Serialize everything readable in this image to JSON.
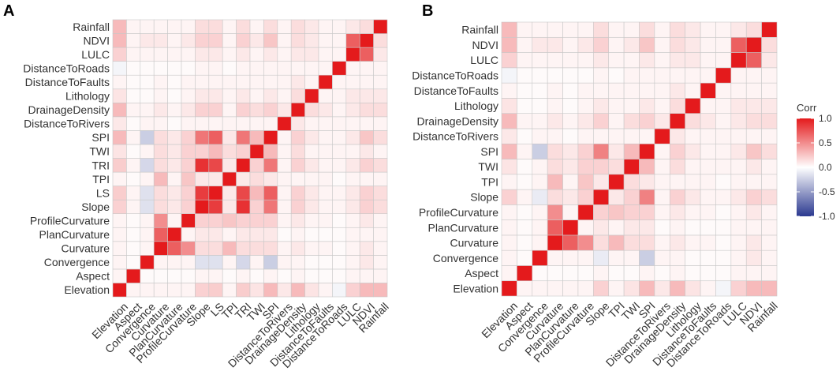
{
  "colors": {
    "negative": "#2b3990",
    "neutral": "#ffffff",
    "positive": "#e41a1c",
    "cell_border": "#c8c8c8"
  },
  "chart_data": [
    {
      "type": "heatmap",
      "panel_label": "A",
      "variables": [
        "Elevation",
        "Aspect",
        "Convergence",
        "Curvature",
        "PlanCurvature",
        "ProfileCurvature",
        "Slope",
        "LS",
        "TPI",
        "TRI",
        "TWI",
        "SPI",
        "DistanceToRivers",
        "DrainageDensity",
        "Lithology",
        "DistanceToFaults",
        "DistanceToRoads",
        "LULC",
        "NDVI",
        "Rainfall"
      ],
      "row_order_top_to_bottom": [
        "Rainfall",
        "NDVI",
        "LULC",
        "DistanceToRoads",
        "DistanceToFaults",
        "Lithology",
        "DrainageDensity",
        "DistanceToRivers",
        "SPI",
        "TWI",
        "TRI",
        "TPI",
        "LS",
        "Slope",
        "ProfileCurvature",
        "PlanCurvature",
        "Curvature",
        "Convergence",
        "Aspect",
        "Elevation"
      ],
      "matrix": [
        [
          1.0,
          0.05,
          0.05,
          0.05,
          0.05,
          0.05,
          0.2,
          0.22,
          0.05,
          0.22,
          0.12,
          0.3,
          0.1,
          0.3,
          0.12,
          0.05,
          -0.05,
          0.2,
          0.3,
          0.3
        ],
        [
          0.05,
          1.0,
          0.02,
          0.02,
          0.02,
          0.02,
          0.05,
          0.05,
          0.02,
          0.05,
          0.02,
          0.05,
          0.02,
          0.05,
          0.02,
          0.02,
          0.02,
          0.05,
          0.05,
          0.05
        ],
        [
          0.05,
          0.02,
          1.0,
          0.05,
          0.05,
          0.05,
          -0.15,
          -0.15,
          0.05,
          -0.2,
          0.05,
          -0.25,
          0.05,
          0.05,
          0.02,
          0.02,
          0.02,
          0.05,
          0.1,
          0.05
        ],
        [
          0.05,
          0.02,
          0.05,
          1.0,
          0.7,
          0.5,
          0.15,
          0.15,
          0.3,
          0.15,
          0.15,
          0.15,
          0.05,
          0.1,
          0.05,
          0.05,
          0.02,
          0.05,
          0.1,
          0.05
        ],
        [
          0.05,
          0.02,
          0.05,
          0.7,
          1.0,
          0.05,
          0.1,
          0.1,
          0.05,
          0.1,
          0.1,
          0.1,
          0.02,
          0.05,
          0.02,
          0.02,
          0.02,
          0.05,
          0.05,
          0.05
        ],
        [
          0.05,
          0.02,
          0.05,
          0.5,
          0.05,
          1.0,
          0.2,
          0.2,
          0.25,
          0.2,
          0.2,
          0.2,
          0.05,
          0.1,
          0.05,
          0.05,
          0.02,
          0.05,
          0.1,
          0.05
        ],
        [
          0.2,
          0.05,
          -0.15,
          0.15,
          0.1,
          0.2,
          1.0,
          0.85,
          0.1,
          0.9,
          0.2,
          0.6,
          0.05,
          0.2,
          0.1,
          0.05,
          0.05,
          0.1,
          0.2,
          0.15
        ],
        [
          0.22,
          0.05,
          -0.15,
          0.15,
          0.1,
          0.2,
          0.85,
          1.0,
          0.1,
          0.8,
          0.3,
          0.7,
          0.05,
          0.2,
          0.1,
          0.05,
          0.05,
          0.1,
          0.2,
          0.15
        ],
        [
          0.05,
          0.02,
          0.05,
          0.3,
          0.05,
          0.25,
          0.1,
          0.1,
          1.0,
          0.1,
          0.15,
          0.1,
          0.05,
          0.05,
          0.05,
          0.05,
          0.02,
          0.05,
          0.05,
          0.05
        ],
        [
          0.22,
          0.05,
          -0.2,
          0.15,
          0.1,
          0.2,
          0.9,
          0.8,
          0.1,
          1.0,
          0.2,
          0.6,
          0.05,
          0.2,
          0.1,
          0.05,
          0.05,
          0.1,
          0.2,
          0.15
        ],
        [
          0.12,
          0.02,
          0.05,
          0.15,
          0.1,
          0.2,
          0.2,
          0.3,
          0.15,
          0.2,
          1.0,
          0.3,
          0.05,
          0.15,
          0.05,
          0.05,
          0.05,
          0.05,
          0.1,
          0.05
        ],
        [
          0.3,
          0.05,
          -0.25,
          0.15,
          0.1,
          0.2,
          0.6,
          0.7,
          0.1,
          0.6,
          0.3,
          1.0,
          0.05,
          0.2,
          0.1,
          0.05,
          0.05,
          0.1,
          0.25,
          0.15
        ],
        [
          0.1,
          0.02,
          0.05,
          0.05,
          0.02,
          0.05,
          0.05,
          0.05,
          0.05,
          0.05,
          0.05,
          0.05,
          1.0,
          0.1,
          0.05,
          0.05,
          0.05,
          0.05,
          0.05,
          0.05
        ],
        [
          0.3,
          0.05,
          0.05,
          0.1,
          0.05,
          0.1,
          0.2,
          0.2,
          0.05,
          0.2,
          0.15,
          0.2,
          0.1,
          1.0,
          0.15,
          0.1,
          0.05,
          0.1,
          0.15,
          0.15
        ],
        [
          0.12,
          0.02,
          0.02,
          0.05,
          0.02,
          0.05,
          0.1,
          0.1,
          0.05,
          0.1,
          0.05,
          0.1,
          0.05,
          0.15,
          1.0,
          0.05,
          0.05,
          0.1,
          0.1,
          0.1
        ],
        [
          0.05,
          0.02,
          0.02,
          0.05,
          0.02,
          0.05,
          0.05,
          0.05,
          0.05,
          0.05,
          0.05,
          0.05,
          0.05,
          0.1,
          0.05,
          1.0,
          0.05,
          0.05,
          0.05,
          0.05
        ],
        [
          -0.05,
          0.02,
          0.02,
          0.02,
          0.02,
          0.02,
          0.05,
          0.05,
          0.02,
          0.05,
          0.05,
          0.05,
          0.05,
          0.05,
          0.05,
          0.05,
          1.0,
          0.05,
          0.05,
          0.05
        ],
        [
          0.2,
          0.05,
          0.05,
          0.05,
          0.05,
          0.05,
          0.1,
          0.1,
          0.05,
          0.1,
          0.05,
          0.1,
          0.05,
          0.1,
          0.1,
          0.05,
          0.05,
          1.0,
          0.7,
          0.1
        ],
        [
          0.3,
          0.05,
          0.1,
          0.1,
          0.05,
          0.1,
          0.2,
          0.2,
          0.05,
          0.2,
          0.1,
          0.25,
          0.05,
          0.15,
          0.1,
          0.05,
          0.05,
          0.7,
          1.0,
          0.15
        ],
        [
          0.3,
          0.05,
          0.05,
          0.05,
          0.05,
          0.05,
          0.15,
          0.15,
          0.05,
          0.15,
          0.05,
          0.15,
          0.05,
          0.15,
          0.1,
          0.05,
          0.05,
          0.1,
          0.15,
          1.0
        ]
      ],
      "value_range": [
        -1,
        1
      ]
    },
    {
      "type": "heatmap",
      "panel_label": "B",
      "variables": [
        "Elevation",
        "Aspect",
        "Convergence",
        "Curvature",
        "PlanCurvature",
        "ProfileCurvature",
        "Slope",
        "TPI",
        "TWI",
        "SPI",
        "DistanceToRivers",
        "DrainageDensity",
        "Lithology",
        "DistanceToFaults",
        "DistanceToRoads",
        "LULC",
        "NDVI",
        "Rainfall"
      ],
      "row_order_top_to_bottom": [
        "Rainfall",
        "NDVI",
        "LULC",
        "DistanceToRoads",
        "DistanceToFaults",
        "Lithology",
        "DrainageDensity",
        "DistanceToRivers",
        "SPI",
        "TWI",
        "TPI",
        "Slope",
        "ProfileCurvature",
        "PlanCurvature",
        "Curvature",
        "Convergence",
        "Aspect",
        "Elevation"
      ],
      "matrix": [
        [
          1.0,
          0.05,
          0.05,
          0.05,
          0.05,
          0.05,
          0.2,
          0.05,
          0.12,
          0.3,
          0.1,
          0.3,
          0.12,
          0.05,
          -0.05,
          0.2,
          0.3,
          0.3
        ],
        [
          0.05,
          1.0,
          0.02,
          0.02,
          0.02,
          0.02,
          0.05,
          0.02,
          0.02,
          0.05,
          0.02,
          0.05,
          0.02,
          0.02,
          0.02,
          0.05,
          0.05,
          0.05
        ],
        [
          0.05,
          0.02,
          1.0,
          0.05,
          0.05,
          0.05,
          -0.1,
          0.05,
          0.05,
          -0.25,
          0.05,
          0.05,
          0.02,
          0.02,
          0.02,
          0.05,
          0.1,
          0.05
        ],
        [
          0.05,
          0.02,
          0.05,
          1.0,
          0.7,
          0.5,
          0.15,
          0.3,
          0.15,
          0.15,
          0.05,
          0.1,
          0.05,
          0.05,
          0.02,
          0.05,
          0.1,
          0.05
        ],
        [
          0.05,
          0.02,
          0.05,
          0.7,
          1.0,
          0.05,
          0.1,
          0.05,
          0.1,
          0.1,
          0.02,
          0.05,
          0.02,
          0.02,
          0.02,
          0.05,
          0.05,
          0.05
        ],
        [
          0.05,
          0.02,
          0.05,
          0.5,
          0.05,
          1.0,
          0.2,
          0.25,
          0.2,
          0.2,
          0.05,
          0.1,
          0.05,
          0.05,
          0.02,
          0.05,
          0.1,
          0.05
        ],
        [
          0.2,
          0.05,
          -0.1,
          0.15,
          0.1,
          0.2,
          1.0,
          0.1,
          0.2,
          0.55,
          0.05,
          0.2,
          0.1,
          0.05,
          0.05,
          0.1,
          0.2,
          0.15
        ],
        [
          0.05,
          0.02,
          0.05,
          0.3,
          0.05,
          0.25,
          0.1,
          1.0,
          0.15,
          0.1,
          0.05,
          0.05,
          0.05,
          0.05,
          0.02,
          0.05,
          0.05,
          0.05
        ],
        [
          0.12,
          0.02,
          0.05,
          0.15,
          0.1,
          0.2,
          0.2,
          0.15,
          1.0,
          0.3,
          0.05,
          0.15,
          0.05,
          0.05,
          0.05,
          0.05,
          0.1,
          0.05
        ],
        [
          0.3,
          0.05,
          -0.25,
          0.15,
          0.1,
          0.2,
          0.55,
          0.1,
          0.3,
          1.0,
          0.05,
          0.2,
          0.1,
          0.05,
          0.05,
          0.1,
          0.25,
          0.15
        ],
        [
          0.1,
          0.02,
          0.05,
          0.05,
          0.02,
          0.05,
          0.05,
          0.05,
          0.05,
          0.05,
          1.0,
          0.1,
          0.05,
          0.05,
          0.05,
          0.05,
          0.05,
          0.05
        ],
        [
          0.3,
          0.05,
          0.05,
          0.1,
          0.05,
          0.1,
          0.2,
          0.05,
          0.15,
          0.2,
          0.1,
          1.0,
          0.15,
          0.1,
          0.05,
          0.1,
          0.15,
          0.15
        ],
        [
          0.12,
          0.02,
          0.02,
          0.05,
          0.02,
          0.05,
          0.1,
          0.05,
          0.05,
          0.1,
          0.05,
          0.15,
          1.0,
          0.05,
          0.05,
          0.1,
          0.1,
          0.1
        ],
        [
          0.05,
          0.02,
          0.02,
          0.05,
          0.02,
          0.05,
          0.05,
          0.05,
          0.05,
          0.05,
          0.05,
          0.1,
          0.05,
          1.0,
          0.05,
          0.05,
          0.05,
          0.05
        ],
        [
          -0.05,
          0.02,
          0.02,
          0.02,
          0.02,
          0.02,
          0.05,
          0.02,
          0.05,
          0.05,
          0.05,
          0.05,
          0.05,
          0.05,
          1.0,
          0.05,
          0.05,
          0.05
        ],
        [
          0.2,
          0.05,
          0.05,
          0.05,
          0.05,
          0.05,
          0.1,
          0.05,
          0.05,
          0.1,
          0.05,
          0.1,
          0.1,
          0.05,
          0.05,
          1.0,
          0.7,
          0.1
        ],
        [
          0.3,
          0.05,
          0.1,
          0.1,
          0.05,
          0.1,
          0.2,
          0.05,
          0.1,
          0.25,
          0.05,
          0.15,
          0.1,
          0.05,
          0.05,
          0.7,
          1.0,
          0.15
        ],
        [
          0.3,
          0.05,
          0.05,
          0.05,
          0.05,
          0.05,
          0.15,
          0.05,
          0.05,
          0.15,
          0.05,
          0.15,
          0.1,
          0.05,
          0.05,
          0.1,
          0.15,
          1.0
        ]
      ],
      "value_range": [
        -1,
        1
      ]
    }
  ],
  "legend": {
    "title": "Corr",
    "ticks": [
      1.0,
      0.5,
      0.0,
      -0.5,
      -1.0
    ],
    "tick_labels": [
      "1.0",
      "0.5",
      "0.0",
      "-0.5",
      "-1.0"
    ]
  }
}
